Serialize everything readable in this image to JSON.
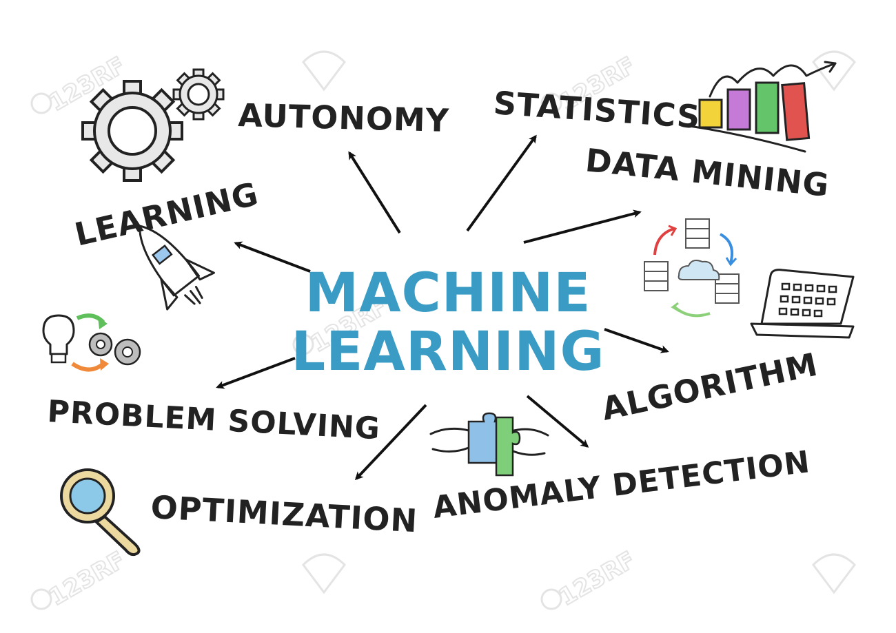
{
  "diagram": {
    "title_line1": "MACHINE",
    "title_line2": "LEARNING",
    "watermark": "123RF",
    "colors": {
      "center": "#3a9cc4",
      "label": "#222222",
      "arrow": "#111111"
    },
    "labels": {
      "autonomy": "AUTONOMY",
      "statistics": "STATISTICS",
      "data_mining": "DATA MINING",
      "learning": "LEARNING",
      "algorithm": "ALGORITHM",
      "problem_solving": "PROBLEM SOLVING",
      "optimization": "OPTIMIZATION",
      "anomaly_detection": "ANOMALY DETECTION"
    },
    "icons": [
      "gear-icon",
      "bar-chart-icon",
      "server-network-icon",
      "laptop-icon",
      "rocket-icon",
      "idea-process-icon",
      "magnifier-icon",
      "puzzle-hands-icon"
    ]
  }
}
